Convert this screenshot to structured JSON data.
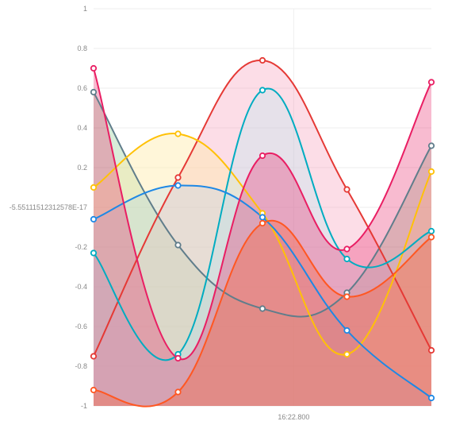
{
  "chart_data": {
    "type": "area",
    "ylim": [
      -1,
      1
    ],
    "y_ticks": [
      {
        "value": 1,
        "label": "1"
      },
      {
        "value": 0.8,
        "label": "0.8"
      },
      {
        "value": 0.6,
        "label": "0.6"
      },
      {
        "value": 0.4,
        "label": "0.4"
      },
      {
        "value": 0.2,
        "label": "0.2"
      },
      {
        "value": 0,
        "label": "-5.55111512312578E-17"
      },
      {
        "value": -0.2,
        "label": "-0.2"
      },
      {
        "value": -0.4,
        "label": "-0.4"
      },
      {
        "value": -0.6,
        "label": "-0.6"
      },
      {
        "value": -0.8,
        "label": "-0.8"
      },
      {
        "value": -1,
        "label": "-1"
      }
    ],
    "x_tick": {
      "index": 2.37,
      "label": "16:22.800"
    },
    "point_count": 5,
    "grid": true,
    "series": [
      {
        "color": "#4caf50",
        "fill": "rgba(76,175,80,0.22)",
        "values": [
          0.58,
          -0.19,
          -0.51,
          -0.43,
          0.31
        ],
        "line_color": "#607d8b"
      },
      {
        "color": "#e53935",
        "fill": "rgba(244,143,177,0.30)",
        "values": [
          -0.75,
          0.15,
          0.74,
          0.09,
          -0.72
        ],
        "line_color": "#e53935"
      },
      {
        "color": "#ffc107",
        "fill": "rgba(255,235,170,0.45)",
        "values": [
          0.1,
          0.37,
          -0.03,
          -0.74,
          0.18
        ],
        "line_color": "#ffc107"
      },
      {
        "color": "#00bcd4",
        "fill": "rgba(178,235,242,0.30)",
        "values": [
          -0.23,
          -0.74,
          0.59,
          -0.26,
          -0.12
        ],
        "line_color": "#00acc1"
      },
      {
        "color": "#2196f3",
        "fill": "rgba(144,202,249,0.20)",
        "values": [
          -0.06,
          0.11,
          -0.05,
          -0.62,
          -0.96
        ],
        "line_color": "#1e88e5"
      },
      {
        "color": "#e91e63",
        "fill": "rgba(233,30,99,0.30)",
        "values": [
          0.7,
          -0.76,
          0.26,
          -0.21,
          0.63
        ],
        "line_color": "#e91e63"
      },
      {
        "color": "#ff5722",
        "fill": "rgba(255,87,34,0.30)",
        "values": [
          -0.92,
          -0.93,
          -0.08,
          -0.45,
          -0.15
        ],
        "line_color": "#ff5722"
      }
    ],
    "base_fill": "rgba(170,145,120,0.55)"
  }
}
